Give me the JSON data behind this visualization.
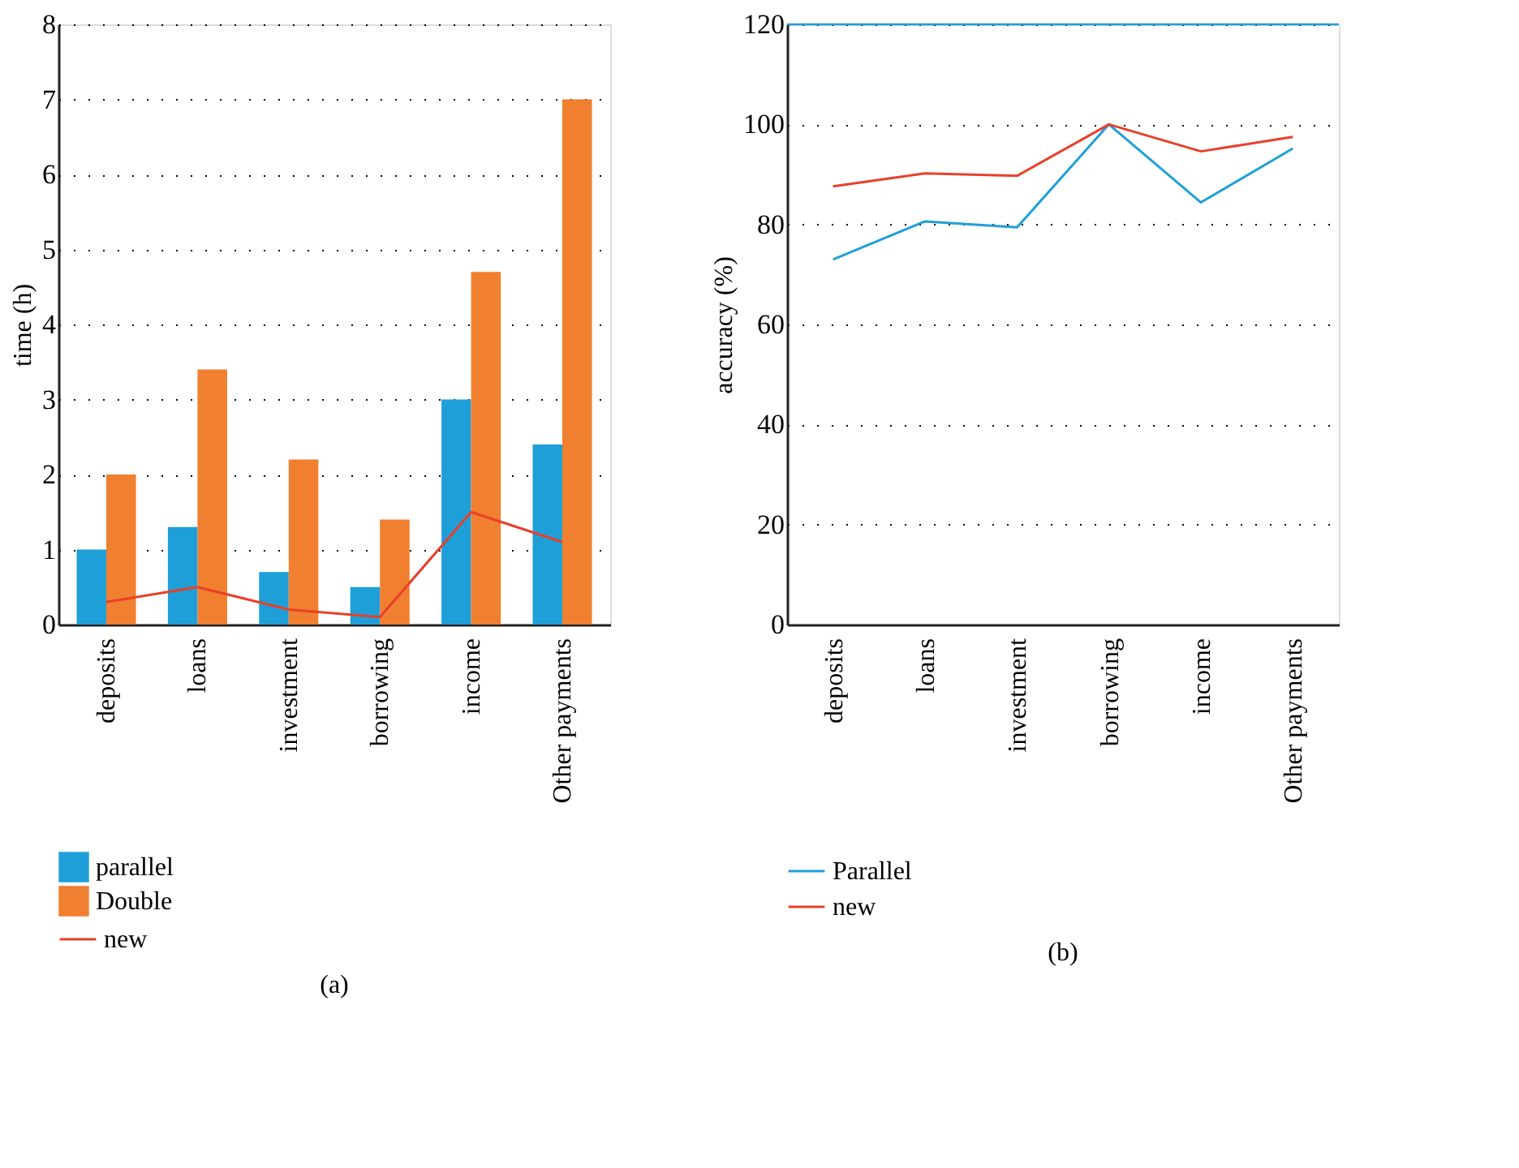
{
  "chart_data": [
    {
      "type": "bar",
      "categories": [
        "deposits",
        "loans",
        "investment",
        "borrowing",
        "income",
        "Other payments"
      ],
      "ylabel": "time (h)",
      "ylim": [
        0,
        8
      ],
      "yticks": [
        0,
        1,
        2,
        3,
        4,
        5,
        6,
        7,
        8
      ],
      "grid": "y",
      "legend": "bottom left",
      "annotations": [
        "(a)"
      ],
      "series": [
        {
          "name": "parallel",
          "type": "bar",
          "color": "#1f9fd8",
          "values": [
            1,
            1.3,
            0.7,
            0.5,
            3,
            2.4
          ]
        },
        {
          "name": "Double",
          "type": "bar",
          "color": "#f07f2f",
          "values": [
            2,
            3.4,
            2.2,
            1.4,
            4.7,
            7
          ]
        },
        {
          "name": "new",
          "type": "line",
          "color": "#e8402a",
          "values": [
            0.3,
            0.5,
            0.2,
            0.1,
            1.5,
            1.1
          ]
        }
      ]
    },
    {
      "type": "line",
      "categories": [
        "deposits",
        "loans",
        "investment",
        "borrowing",
        "income",
        "Other payments"
      ],
      "ylabel": "accuracy (%)",
      "ylim": [
        0,
        120
      ],
      "yticks": [
        0,
        20,
        40,
        60,
        80,
        100,
        120
      ],
      "grid": "y",
      "legend": "bottom left",
      "annotations": [
        "(b)"
      ],
      "ref_lines": [
        {
          "axis": "y",
          "value": 120,
          "color": "#1f9fd8"
        }
      ],
      "series": [
        {
          "name": "Parallel",
          "color": "#1f9fd8",
          "values": [
            73,
            80.6,
            79.4,
            100,
            84.4,
            95.2
          ]
        },
        {
          "name": "new",
          "color": "#e8402a",
          "values": [
            87.6,
            90.2,
            89.7,
            100,
            94.6,
            97.5
          ]
        }
      ]
    }
  ]
}
